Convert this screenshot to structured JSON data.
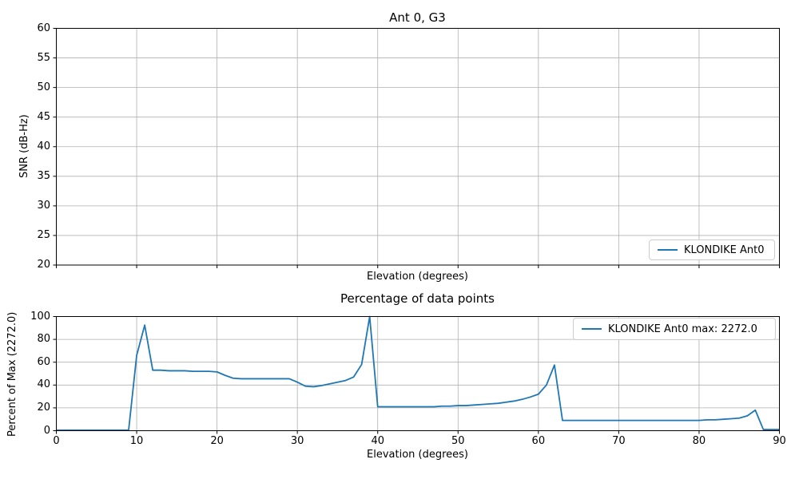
{
  "figure": {
    "background": "#ffffff",
    "line_color": "#1f77b4",
    "grid_color": "#b0b0b0",
    "spine_color": "#000000",
    "text_color": "#000000"
  },
  "top_plot": {
    "title": "Ant 0, G3",
    "xlabel": "Elevation (degrees)",
    "ylabel": "SNR (dB-Hz)",
    "legend_label": "KLONDIKE Ant0"
  },
  "bottom_plot": {
    "title": "Percentage of data points",
    "xlabel": "Elevation (degrees)",
    "ylabel": "Percent of Max (2272.0)",
    "legend_label": "KLONDIKE Ant0 max: 2272.0",
    "max_value": 2272.0
  },
  "chart_data": [
    {
      "type": "line",
      "title": "Ant 0, G3",
      "xlabel": "Elevation (degrees)",
      "ylabel": "SNR (dB-Hz)",
      "xlim": [
        0,
        90
      ],
      "ylim": [
        20,
        60
      ],
      "xticks": [
        0,
        10,
        20,
        30,
        40,
        50,
        60,
        70,
        80,
        90
      ],
      "yticks": [
        20,
        25,
        30,
        35,
        40,
        45,
        50,
        55,
        60
      ],
      "xticklabels_visible": false,
      "grid": true,
      "legend_position": "lower right",
      "legend": [
        {
          "name": "KLONDIKE Ant0",
          "color": "#1f77b4"
        }
      ],
      "series": []
    },
    {
      "type": "line",
      "title": "Percentage of data points",
      "xlabel": "Elevation (degrees)",
      "ylabel": "Percent of Max (2272.0)",
      "xlim": [
        0,
        90
      ],
      "ylim": [
        0,
        100
      ],
      "xticks": [
        0,
        10,
        20,
        30,
        40,
        50,
        60,
        70,
        80,
        90
      ],
      "yticks": [
        0,
        20,
        40,
        60,
        80,
        100
      ],
      "xticklabels_visible": true,
      "grid": true,
      "legend_position": "upper right",
      "legend": [
        {
          "name": "KLONDIKE Ant0 max: 2272.0",
          "color": "#1f77b4"
        }
      ],
      "series": [
        {
          "name": "KLONDIKE Ant0",
          "color": "#1f77b4",
          "x": [
            0,
            1,
            2,
            3,
            4,
            5,
            6,
            7,
            8,
            9,
            10,
            11,
            12,
            13,
            14,
            15,
            16,
            17,
            18,
            19,
            20,
            21,
            22,
            23,
            24,
            25,
            26,
            27,
            28,
            29,
            30,
            31,
            32,
            33,
            34,
            35,
            36,
            37,
            38,
            39,
            40,
            41,
            42,
            43,
            44,
            45,
            46,
            47,
            48,
            49,
            50,
            51,
            52,
            53,
            54,
            55,
            56,
            57,
            58,
            59,
            60,
            61,
            62,
            63,
            64,
            65,
            66,
            67,
            68,
            69,
            70,
            71,
            72,
            73,
            74,
            75,
            76,
            77,
            78,
            79,
            80,
            81,
            82,
            83,
            84,
            85,
            86,
            87,
            88,
            89,
            90
          ],
          "y": [
            0.5,
            0.5,
            0.5,
            0.5,
            0.5,
            0.5,
            0.5,
            0.5,
            0.5,
            0.5,
            66,
            92.5,
            53,
            53,
            52.5,
            52.5,
            52.5,
            52,
            52,
            52,
            51.5,
            48.5,
            46,
            45.5,
            45.5,
            45.5,
            45.5,
            45.5,
            45.5,
            45.5,
            42.5,
            39,
            38.5,
            39.5,
            41,
            42.5,
            44,
            47,
            58,
            100,
            21,
            21,
            21,
            21,
            21,
            21,
            21,
            21,
            21.5,
            21.5,
            22,
            22,
            22.5,
            23,
            23.5,
            24,
            25,
            26,
            27.5,
            29.5,
            32,
            40,
            57.5,
            9,
            9,
            9,
            9,
            9,
            9,
            9,
            9,
            9,
            9,
            9,
            9,
            9,
            9,
            9,
            9,
            9,
            9,
            9.5,
            9.5,
            10,
            10.5,
            11,
            13,
            18,
            1,
            1,
            1
          ]
        }
      ]
    }
  ]
}
